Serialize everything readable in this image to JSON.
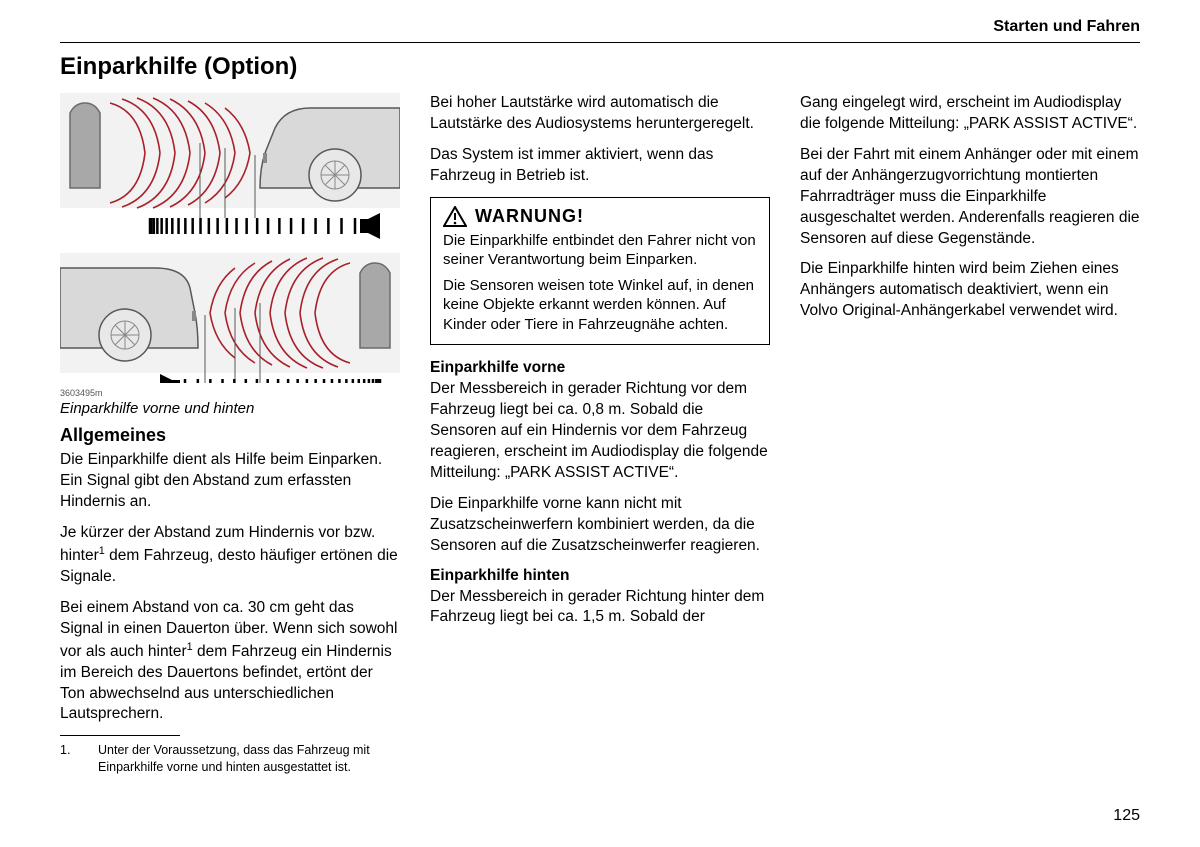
{
  "header": {
    "section": "Starten und Fahren"
  },
  "title": "Einparkhilfe (Option)",
  "figure": {
    "image_code": "3603495m",
    "caption": "Einparkhilfe vorne und hinten",
    "colors": {
      "wave": "#a8202a",
      "wave_strokewidth": 1.6,
      "car_fill": "#d9d9d9",
      "car_stroke": "#585858",
      "obstacle_fill": "#a8a8a8",
      "obstacle_stroke": "#6b6b6b",
      "scale_stroke": "#000000",
      "background": "#f2f2f2"
    },
    "front": {
      "label": "front sensor illustration",
      "scale_ticks": 25,
      "speaker_side": "right"
    },
    "rear": {
      "label": "rear sensor illustration",
      "scale_ticks": 25,
      "speaker_side": "left"
    }
  },
  "col1": {
    "h_allgemeines": "Allgemeines",
    "p1": "Die Einparkhilfe dient als Hilfe beim Einparken. Ein Signal gibt den Abstand zum erfassten Hindernis an.",
    "p2a": "Je kürzer der Abstand zum Hindernis vor bzw. hinter",
    "p2b": " dem Fahrzeug, desto häufiger ertönen die Signale.",
    "p3a": "Bei einem Abstand von ca. 30 cm geht das Signal in einen Dauerton über. Wenn sich sowohl vor als auch hinter",
    "p3b": " dem Fahrzeug ein Hindernis im Bereich des Dauertons befindet, ertönt der Ton abwechselnd aus unterschiedlichen Lautsprechern.",
    "footnote_num": "1.",
    "footnote": "Unter der Voraussetzung, dass das Fahrzeug mit Einparkhilfe vorne und hinten ausgestattet ist."
  },
  "col2": {
    "p1": "Bei hoher Lautstärke wird automatisch die Lautstärke des Audiosystems heruntergeregelt.",
    "p2": "Das System ist immer aktiviert, wenn das Fahrzeug in Betrieb ist.",
    "warning_title": "WARNUNG!",
    "warning_p1": "Die Einparkhilfe entbindet den Fahrer nicht von seiner Verantwortung beim Einparken.",
    "warning_p2": "Die Sensoren weisen tote Winkel auf, in denen keine Objekte erkannt werden können. Auf Kinder oder Tiere in Fahrzeugnähe achten.",
    "h_vorne": "Einparkhilfe vorne",
    "p_vorne1": "Der Messbereich in gerader Richtung vor dem Fahrzeug liegt bei ca. 0,8 m. Sobald die Sensoren auf ein Hindernis vor dem Fahrzeug reagieren, erscheint im Audiodisplay die folgende Mitteilung: „PARK ASSIST ACTIVE“.",
    "p_vorne2": "Die Einparkhilfe vorne kann nicht mit Zusatzscheinwerfern kombiniert werden, da die Sensoren auf die Zusatzscheinwerfer reagieren.",
    "h_hinten": "Einparkhilfe hinten",
    "p_hinten": "Der Messbereich in gerader Richtung hinter dem Fahrzeug liegt bei ca. 1,5 m. Sobald der"
  },
  "col3": {
    "p1": "Gang eingelegt wird, erscheint im Audiodisplay die folgende Mitteilung: „PARK ASSIST ACTIVE“.",
    "p2": "Bei der Fahrt mit einem Anhänger oder mit einem auf der Anhängerzugvorrichtung montierten Fahrradträger muss die Einparkhilfe ausgeschaltet werden. Anderenfalls reagieren die Sensoren auf diese Gegenstände.",
    "p3": "Die Einparkhilfe hinten wird beim Ziehen eines Anhängers automatisch deaktiviert, wenn ein Volvo Original-Anhängerkabel verwendet wird."
  },
  "page_number": "125"
}
